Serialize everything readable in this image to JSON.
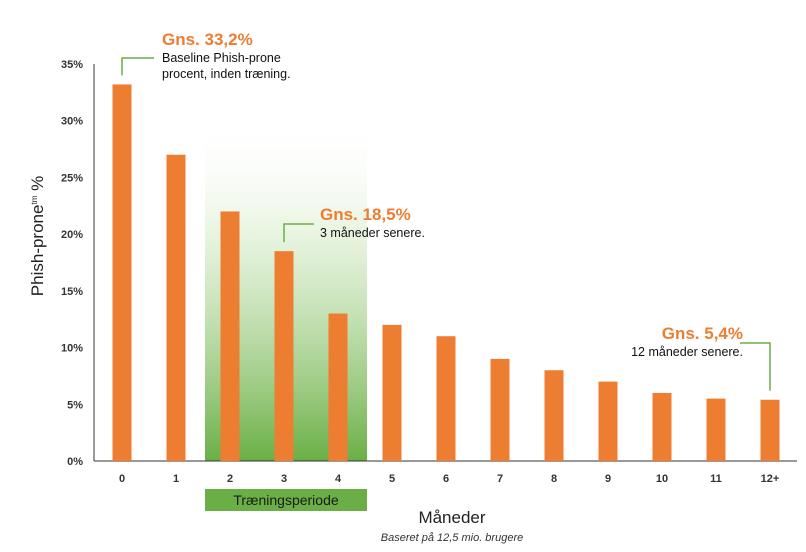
{
  "chart_data": {
    "type": "bar",
    "categories": [
      "0",
      "1",
      "2",
      "3",
      "4",
      "5",
      "6",
      "7",
      "8",
      "9",
      "10",
      "11",
      "12+"
    ],
    "values": [
      33.2,
      27.0,
      22.0,
      18.5,
      13.0,
      12.0,
      11.0,
      9.0,
      8.0,
      7.0,
      6.0,
      5.5,
      5.4
    ],
    "ylim": [
      0,
      35
    ],
    "yticks": [
      "0%",
      "5%",
      "10%",
      "15%",
      "20%",
      "25%",
      "30%",
      "35%"
    ],
    "ylabel": "Phish-prone",
    "ylabel_sup": "tm",
    "ylabel_suffix": " %",
    "xlabel": "Måneder",
    "note": "Baseret på 12,5 mio. brugere",
    "bar_color": "#ed7d31",
    "training_period": {
      "label": "Træningsperiode",
      "categories": [
        "2",
        "3",
        "4"
      ],
      "color": "#6aaf45"
    },
    "annotations": [
      {
        "category": "0",
        "value": 33.2,
        "title": "Gns. 33,2%",
        "lines": [
          "Baseline Phish-prone",
          "procent, inden træning."
        ]
      },
      {
        "category": "3",
        "value": 18.5,
        "title": "Gns. 18,5%",
        "lines": [
          "3 måneder senere."
        ]
      },
      {
        "category": "12+",
        "value": 5.4,
        "title": "Gns. 5,4%",
        "lines": [
          "12 måneder senere."
        ]
      }
    ],
    "grid": false,
    "legend": "none"
  }
}
